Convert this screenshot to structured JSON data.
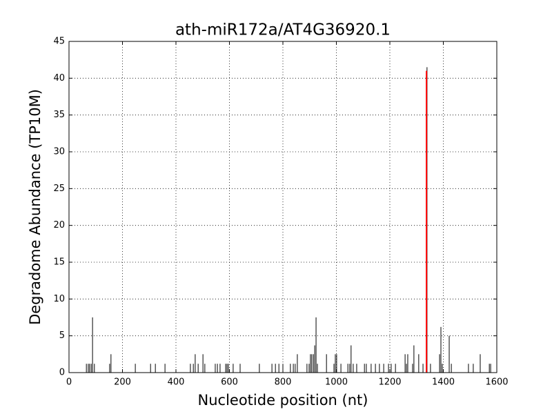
{
  "chart_data": {
    "type": "stem",
    "title": "ath-miR172a/AT4G36920.1",
    "xlabel": "Nucleotide position (nt)",
    "ylabel": "Degradome Abundance (TP10M)",
    "xlim": [
      0,
      1600
    ],
    "xticks": [
      0,
      200,
      400,
      600,
      800,
      1000,
      1200,
      1400,
      1600
    ],
    "ylim": [
      0,
      45
    ],
    "yticks": [
      0,
      5,
      10,
      15,
      20,
      25,
      30,
      35,
      40,
      45
    ],
    "grid": true,
    "series": [
      {
        "color": "#000000",
        "x": [
          65,
          72,
          77,
          83,
          88,
          95,
          152,
          157,
          248,
          305,
          323,
          359,
          454,
          465,
          472,
          483,
          501,
          508,
          547,
          555,
          565,
          586,
          591,
          596,
          614,
          640,
          712,
          759,
          772,
          785,
          800,
          828,
          839,
          846,
          854,
          890,
          898,
          903,
          908,
          914,
          919,
          924,
          929,
          963,
          991,
          996,
          1001,
          1017,
          1043,
          1050,
          1055,
          1063,
          1076,
          1105,
          1112,
          1130,
          1146,
          1161,
          1177,
          1195,
          1205,
          1221,
          1257,
          1262,
          1267,
          1285,
          1290,
          1308,
          1324,
          1339,
          1352,
          1386,
          1391,
          1396,
          1422,
          1430,
          1494,
          1512,
          1538,
          1572,
          1577
        ],
        "values": [
          1.2,
          1.2,
          1.2,
          1.2,
          7.5,
          1.2,
          1.2,
          2.5,
          1.2,
          1.2,
          1.2,
          1.2,
          1.2,
          1.2,
          2.5,
          1.2,
          2.5,
          1.2,
          1.2,
          1.2,
          1.2,
          1.2,
          1.2,
          1.2,
          1.2,
          1.2,
          1.2,
          1.2,
          1.2,
          1.2,
          1.2,
          1.2,
          1.2,
          1.2,
          2.5,
          1.2,
          1.2,
          2.5,
          2.5,
          2.5,
          3.7,
          7.5,
          1.2,
          2.5,
          1.2,
          2.5,
          2.5,
          1.2,
          1.2,
          1.2,
          3.7,
          1.2,
          1.2,
          1.2,
          1.2,
          1.2,
          1.2,
          1.2,
          1.2,
          1.2,
          1.2,
          1.2,
          2.5,
          1.2,
          2.5,
          1.2,
          3.7,
          2.5,
          1.2,
          41.5,
          1.2,
          2.5,
          6.2,
          1.2,
          5,
          1.2,
          1.2,
          1.2,
          2.5,
          1.2,
          1.2
        ]
      },
      {
        "color": "#ff0000",
        "width": 2,
        "x": [
          1337
        ],
        "values": [
          41
        ]
      }
    ]
  }
}
